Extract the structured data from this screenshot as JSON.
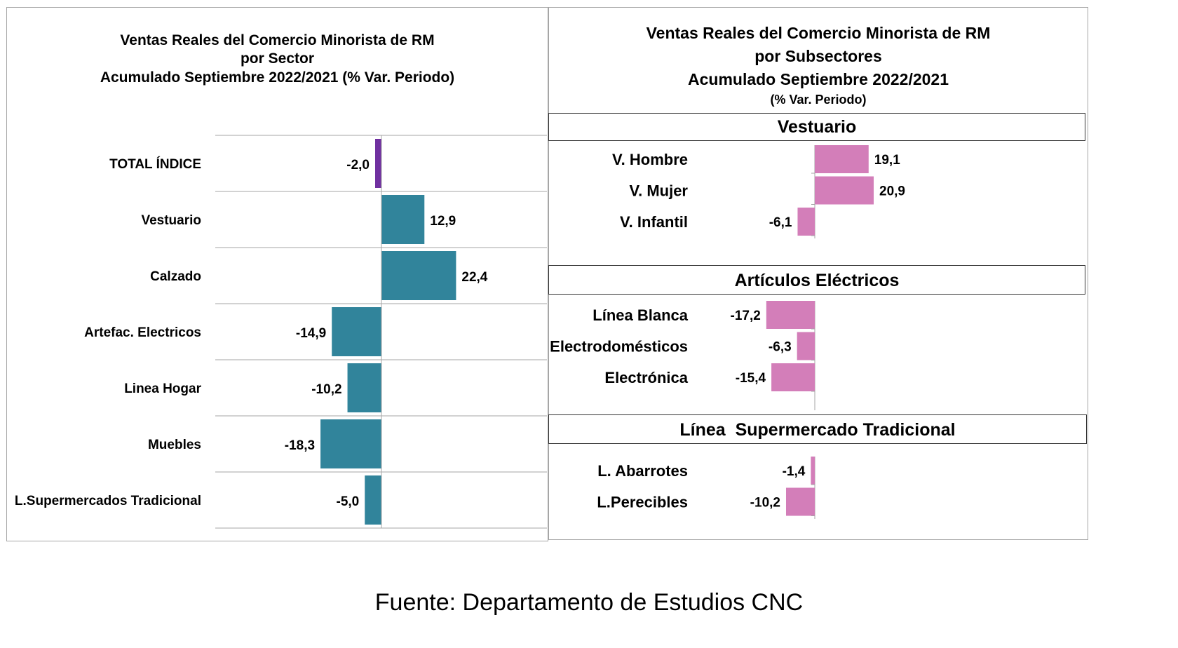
{
  "source": "Fuente: Departamento de Estudios CNC",
  "colors": {
    "total": "#7030a0",
    "sector": "#31849b",
    "subsector": "#d37eb9",
    "grid": "#a6a6a6"
  },
  "chart_data": [
    {
      "type": "bar",
      "orientation": "horizontal",
      "title": "Ventas Reales del Comercio Minorista de RM",
      "subtitle": "por Sector",
      "subtitle2": "Acumulado Septiembre 2022/2021 (% Var. Periodo)",
      "categories": [
        "TOTAL ÍNDICE",
        "Vestuario",
        "Calzado",
        "Artefac. Electricos",
        "Linea Hogar",
        "Muebles",
        "L.Supermercados Tradicional"
      ],
      "values": [
        -2.0,
        12.9,
        22.4,
        -14.9,
        -10.2,
        -18.3,
        -5.0
      ],
      "value_labels": [
        "-2,0",
        "12,9",
        "22,4",
        "-14,9",
        "-10,2",
        "-18,3",
        "-5,0"
      ],
      "grid": true
    },
    {
      "type": "bar",
      "orientation": "horizontal",
      "title": "Ventas Reales del Comercio Minorista de RM",
      "subtitle": "por Subsectores",
      "subtitle2": "Acumulado Septiembre 2022/2021",
      "subtitle3": "(% Var. Periodo)",
      "groups": [
        {
          "name": "Vestuario",
          "categories": [
            "V. Hombre",
            "V. Mujer",
            "V. Infantil"
          ],
          "values": [
            19.1,
            20.9,
            -6.1
          ],
          "value_labels": [
            "19,1",
            "20,9",
            "-6,1"
          ]
        },
        {
          "name": "Artículos Eléctricos",
          "categories": [
            "Línea Blanca",
            "Electrodomésticos",
            "Electrónica"
          ],
          "values": [
            -17.2,
            -6.3,
            -15.4
          ],
          "value_labels": [
            "-17,2",
            "-6,3",
            "-15,4"
          ]
        },
        {
          "name": "Línea  Supermercado Tradicional",
          "categories": [
            "L. Abarrotes",
            "L.Perecibles"
          ],
          "values": [
            -1.4,
            -10.2
          ],
          "value_labels": [
            "-1,4",
            "-10,2"
          ]
        }
      ]
    }
  ]
}
